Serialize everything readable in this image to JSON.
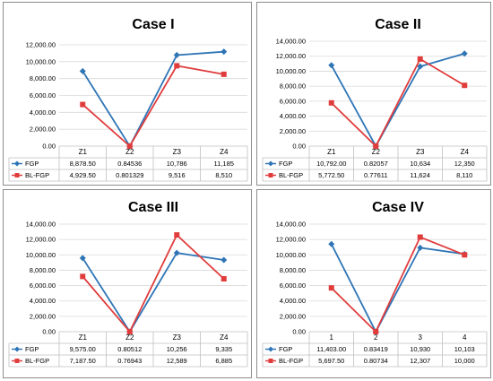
{
  "chart_data": [
    {
      "type": "line",
      "title": "Case I",
      "categories": [
        "Z1",
        "Z2",
        "Z3",
        "Z4"
      ],
      "ylim": [
        0,
        12000
      ],
      "yticks": [
        "0.00",
        "2,000.00",
        "4,000.00",
        "6,000.00",
        "8,000.00",
        "10,000.00",
        "12,000.00"
      ],
      "grid": true,
      "legend": "data-table",
      "series": [
        {
          "name": "FGP",
          "color": "#2e75b6",
          "marker": "diamond",
          "values": [
            8878.5,
            0.84536,
            10786,
            11185
          ],
          "labels": [
            "8,878.50",
            "0.84536",
            "10,786",
            "11,185"
          ]
        },
        {
          "name": "BL-FGP",
          "color": "#e03c3c",
          "marker": "square",
          "values": [
            4929.5,
            0.801329,
            9516,
            8510
          ],
          "labels": [
            "4,929.50",
            "0.801329",
            "9,516",
            "8,510"
          ]
        }
      ]
    },
    {
      "type": "line",
      "title": "Case II",
      "categories": [
        "Z1",
        "Z2",
        "Z3",
        "Z4"
      ],
      "ylim": [
        0,
        14000
      ],
      "yticks": [
        "0.00",
        "2,000.00",
        "4,000.00",
        "6,000.00",
        "8,000.00",
        "10,000.00",
        "12,000.00",
        "14,000.00"
      ],
      "grid": true,
      "legend": "data-table",
      "series": [
        {
          "name": "FGP",
          "color": "#2e75b6",
          "marker": "diamond",
          "values": [
            10792,
            0.82057,
            10634,
            12350
          ],
          "labels": [
            "10,792.00",
            "0.82057",
            "10,634",
            "12,350"
          ]
        },
        {
          "name": "BL-FGP",
          "color": "#e03c3c",
          "marker": "square",
          "values": [
            5772.5,
            0.77611,
            11624,
            8110
          ],
          "labels": [
            "5,772.50",
            "0.77611",
            "11,624",
            "8,110"
          ]
        }
      ]
    },
    {
      "type": "line",
      "title": "Case III",
      "categories": [
        "Z1",
        "Z2",
        "Z3",
        "Z4"
      ],
      "ylim": [
        0,
        14000
      ],
      "yticks": [
        "0.00",
        "2,000.00",
        "4,000.00",
        "6,000.00",
        "8,000.00",
        "10,000.00",
        "12,000.00",
        "14,000.00"
      ],
      "grid": true,
      "legend": "data-table",
      "series": [
        {
          "name": "FGP",
          "color": "#2e75b6",
          "marker": "diamond",
          "values": [
            9575,
            0.80512,
            10256,
            9335
          ],
          "labels": [
            "9,575.00",
            "0.80512",
            "10,256",
            "9,335"
          ]
        },
        {
          "name": "BL-FGP",
          "color": "#e03c3c",
          "marker": "square",
          "values": [
            7187.5,
            0.76943,
            12589,
            6885
          ],
          "labels": [
            "7,187.50",
            "0.76943",
            "12,589",
            "6,885"
          ]
        }
      ]
    },
    {
      "type": "line",
      "title": "Case IV",
      "categories": [
        "1",
        "2",
        "3",
        "4"
      ],
      "ylim": [
        0,
        14000
      ],
      "yticks": [
        "0.00",
        "2,000.00",
        "4,000.00",
        "6,000.00",
        "8,000.00",
        "10,000.00",
        "12,000.00",
        "14,000.00"
      ],
      "grid": true,
      "legend": "data-table",
      "series": [
        {
          "name": "FGP",
          "color": "#2e75b6",
          "marker": "diamond",
          "values": [
            11403,
            0.83419,
            10930,
            10103
          ],
          "labels": [
            "11,403.00",
            "0.83419",
            "10,930",
            "10,103"
          ]
        },
        {
          "name": "BL-FGP",
          "color": "#e03c3c",
          "marker": "square",
          "values": [
            5697.5,
            0.80734,
            12307,
            10000
          ],
          "labels": [
            "5,697.50",
            "0.80734",
            "12,307",
            "10,000"
          ]
        }
      ]
    }
  ]
}
